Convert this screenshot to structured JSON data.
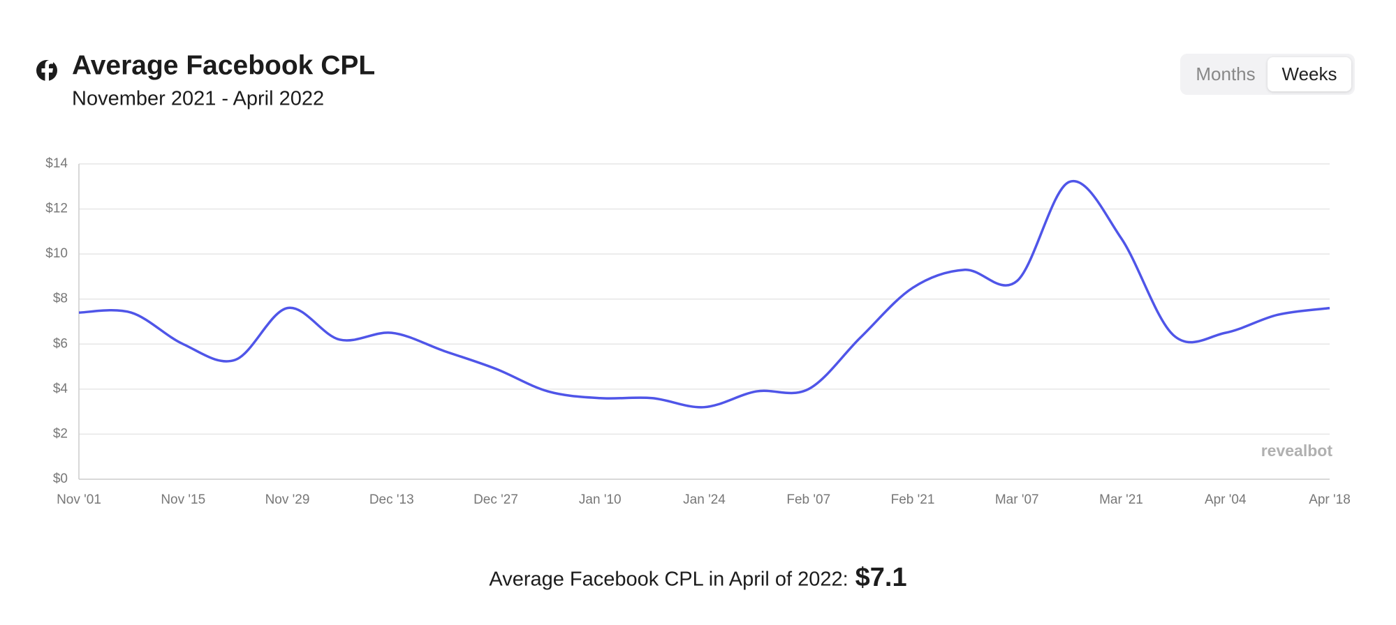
{
  "header": {
    "title": "Average Facebook CPL",
    "subtitle": "November 2021 - April 2022"
  },
  "toggle": {
    "options": [
      "Months",
      "Weeks"
    ],
    "selected": "Weeks"
  },
  "chart_data": {
    "type": "line",
    "categories": [
      "Nov '01",
      null,
      "Nov '15",
      null,
      "Nov '29",
      null,
      "Dec '13",
      null,
      "Dec '27",
      null,
      "Jan '10",
      null,
      "Jan '24",
      null,
      "Feb '07",
      null,
      "Feb '21",
      null,
      "Mar '07",
      null,
      "Mar '21",
      null,
      "Apr '04",
      null,
      "Apr '18"
    ],
    "series": [
      {
        "name": "Average Facebook CPL",
        "color": "#4f55e8",
        "values": [
          7.4,
          7.4,
          6.0,
          5.3,
          7.6,
          6.2,
          6.5,
          5.7,
          4.9,
          3.9,
          3.6,
          3.6,
          3.2,
          3.9,
          4.0,
          6.3,
          8.5,
          9.3,
          8.8,
          13.2,
          10.7,
          6.4,
          6.5,
          7.3,
          7.6
        ]
      }
    ],
    "ylim": [
      0,
      14
    ],
    "yticks": [
      {
        "value": 0,
        "label": "$0"
      },
      {
        "value": 2,
        "label": "$2"
      },
      {
        "value": 4,
        "label": "$4"
      },
      {
        "value": 6,
        "label": "$6"
      },
      {
        "value": 8,
        "label": "$8"
      },
      {
        "value": 10,
        "label": "$10"
      },
      {
        "value": 12,
        "label": "$12"
      },
      {
        "value": 14,
        "label": "$14"
      }
    ],
    "grid": true,
    "watermark": "revealbot"
  },
  "footer": {
    "text": "Average Facebook CPL in April of 2022:",
    "value": "$7.1"
  }
}
